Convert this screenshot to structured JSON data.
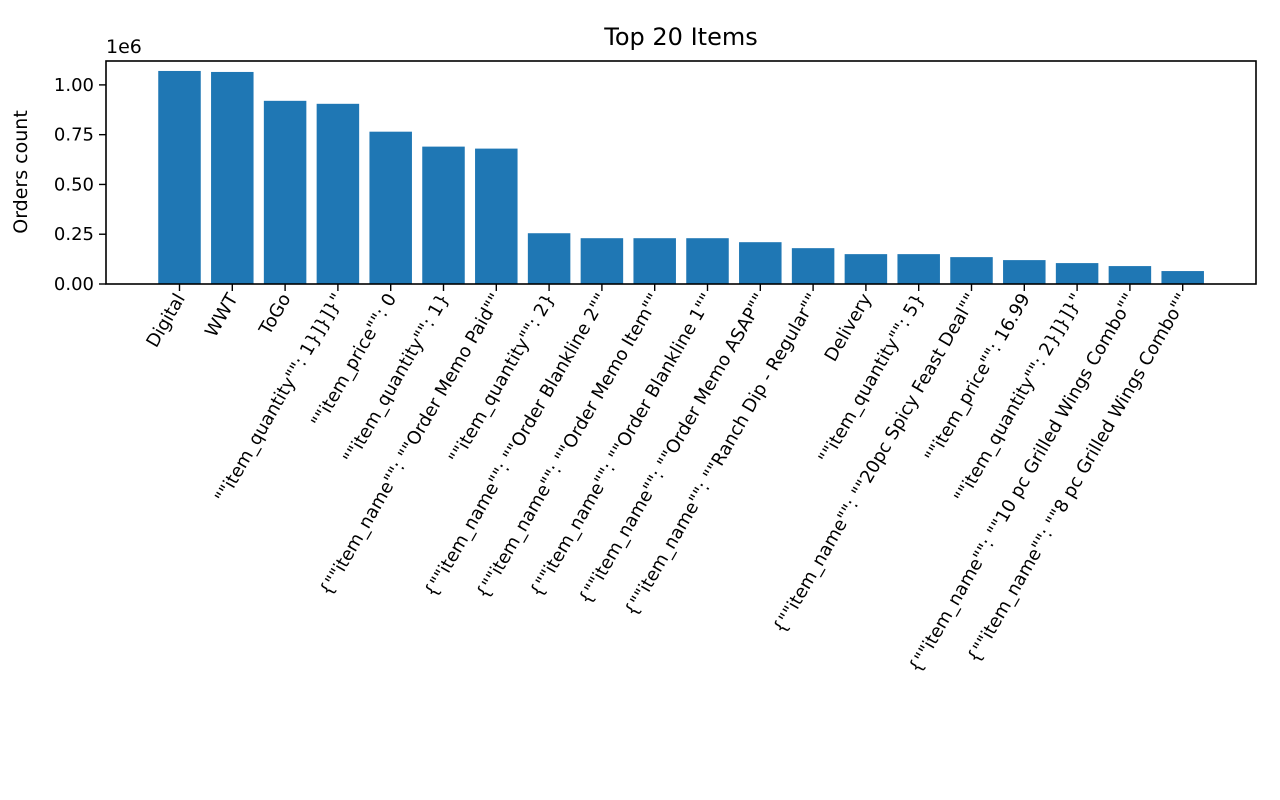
{
  "chart_data": {
    "type": "bar",
    "title": "Top 20 Items",
    "xlabel": "",
    "ylabel": "Orders count",
    "offset_text": "1e6",
    "ylim": [
      0,
      1.12
    ],
    "yticks": [
      "0.00",
      "0.25",
      "0.50",
      "0.75",
      "1.00"
    ],
    "ytick_values": [
      0,
      0.25,
      0.5,
      0.75,
      1.0
    ],
    "grid": false,
    "bar_color": "#1f77b4",
    "categories": [
      "Digital",
      "WWT",
      "ToGo",
      "\"\"item_quantity\"\": 1}]}]}\"",
      "\"\"item_price\"\": 0",
      "\"\"item_quantity\"\": 1}",
      "{\"\"item_name\"\": \"\"Order Memo Paid\"\"",
      "\"\"item_quantity\"\": 2}",
      "{\"\"item_name\"\": \"\"Order Blankline 2\"\"",
      "{\"\"item_name\"\": \"\"Order Memo Item\"\"",
      "{\"\"item_name\"\": \"\"Order Blankline 1\"\"",
      "{\"\"item_name\"\": \"\"Order Memo ASAP\"\"",
      "{\"\"item_name\"\": \"\"Ranch Dip - Regular\"\"",
      "Delivery",
      "\"\"item_quantity\"\": 5}",
      "{\"\"item_name\"\": \"\"20pc Spicy Feast Deal\"\"",
      "\"\"item_price\"\": 16.99",
      "\"\"item_quantity\"\": 2}]}]}\"",
      "{\"\"item_name\"\": \"\"10 pc Grilled Wings Combo\"\"",
      "{\"\"item_name\"\": \"\"8 pc Grilled Wings Combo\"\""
    ],
    "values": [
      1.07,
      1.065,
      0.92,
      0.905,
      0.765,
      0.69,
      0.68,
      0.255,
      0.23,
      0.23,
      0.23,
      0.21,
      0.18,
      0.15,
      0.15,
      0.135,
      0.12,
      0.105,
      0.09,
      0.065
    ]
  }
}
